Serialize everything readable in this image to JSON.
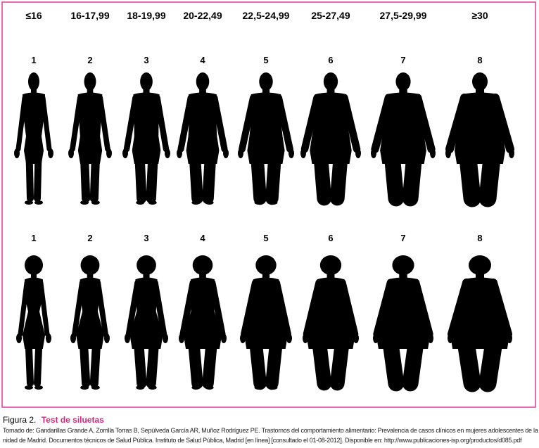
{
  "header": {
    "bmi_ranges": [
      "≤16",
      "16-17,99",
      "18-19,99",
      "20-22,49",
      "22,5-24,99",
      "25-27,49",
      "27,5-29,99",
      "≥30"
    ]
  },
  "male_row": {
    "numbers": [
      1,
      2,
      3,
      4,
      5,
      6,
      7,
      8
    ]
  },
  "female_row": {
    "numbers": [
      1,
      2,
      3,
      4,
      5,
      6,
      7,
      8
    ]
  },
  "caption": {
    "label": "Figura 2.",
    "title": "Test de siluetas",
    "source_line_1": "Tomado de: Gandarillas Grande A, Zorrilla Torras B, Sepúlveda García AR, Muñoz Rodríguez PE. Trastornos del comportamiento alimentario: Prevalencia de casos clínicos en mujeres adolescentes de la Comu-",
    "source_line_2": "nidad de Madrid. Documentos técnicos de Salud Pública. Instituto de Salud Pública, Madrid [en línea] [consultado el 01-08-2012]. Disponible en: http://www.publicaciones-isp.org/productos/d085.pdf"
  }
}
